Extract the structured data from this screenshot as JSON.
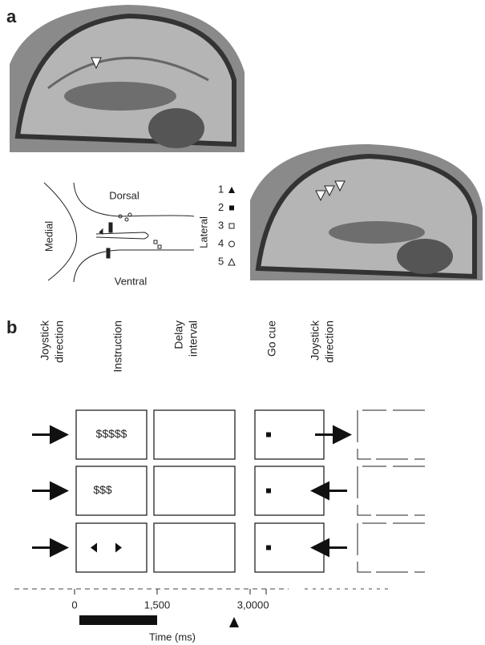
{
  "panels": {
    "a": "a",
    "b": "b"
  },
  "diagram": {
    "dorsal": "Dorsal",
    "ventral": "Ventral",
    "medial": "Medial",
    "lateral": "Lateral"
  },
  "legend": [
    "1",
    "2",
    "3",
    "4",
    "5"
  ],
  "task": {
    "headers": [
      [
        "Joystick",
        "direction"
      ],
      [
        "Instruction"
      ],
      [
        "Delay",
        "interval"
      ],
      [
        "Go cue"
      ],
      [
        "Joystick",
        "direction"
      ]
    ],
    "instructions": [
      "$$$$$",
      "$$$"
    ]
  },
  "timeline": {
    "ticks": [
      "0",
      "1,500",
      "3,000",
      "0"
    ],
    "label": "Time (ms)"
  }
}
